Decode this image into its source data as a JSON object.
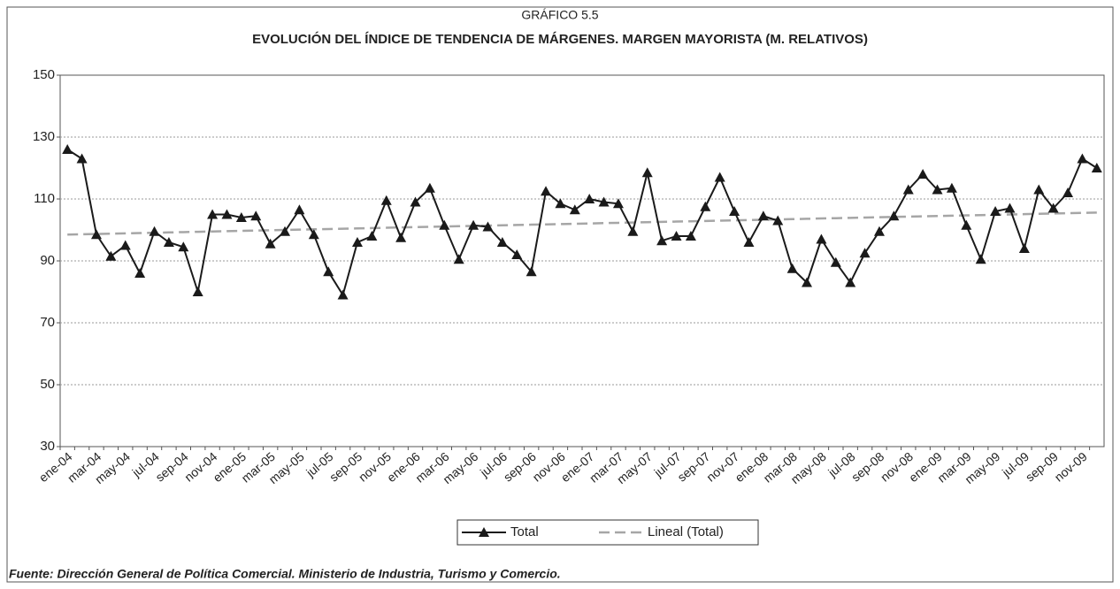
{
  "chart_data": {
    "type": "line",
    "supertitle": "GRÁFICO 5.5",
    "title": "EVOLUCIÓN DEL ÍNDICE DE TENDENCIA DE MÁRGENES. MARGEN MAYORISTA (M. RELATIVOS)",
    "source": "Fuente: Dirección General de Política Comercial. Ministerio de Industria, Turismo y Comercio.",
    "categories": [
      "ene-04",
      null,
      "mar-04",
      null,
      "may-04",
      null,
      "jul-04",
      null,
      "sep-04",
      null,
      "nov-04",
      null,
      "ene-05",
      null,
      "mar-05",
      null,
      "may-05",
      null,
      "jul-05",
      null,
      "sep-05",
      null,
      "nov-05",
      null,
      "ene-06",
      null,
      "mar-06",
      null,
      "may-06",
      null,
      "jul-06",
      null,
      "sep-06",
      null,
      "nov-06",
      null,
      "ene-07",
      null,
      "mar-07",
      null,
      "may-07",
      null,
      "jul-07",
      null,
      "sep-07",
      null,
      "nov-07",
      null,
      "ene-08",
      null,
      "mar-08",
      null,
      "may-08",
      null,
      "jul-08",
      null,
      "sep-08",
      null,
      "nov-08",
      null,
      "ene-09",
      null,
      "mar-09",
      null,
      "may-09",
      null,
      "jul-09",
      null,
      "sep-09",
      null,
      "nov-09",
      null
    ],
    "series": [
      {
        "name": "Total",
        "color": "#1a1a1a",
        "marker": "triangle",
        "values": [
          126,
          123,
          98.5,
          91.5,
          95,
          86,
          99.5,
          96,
          94.5,
          80,
          105,
          105,
          104,
          104.5,
          95.5,
          99.5,
          106.5,
          98.5,
          86.5,
          79,
          96,
          98,
          109.5,
          97.5,
          109,
          113.5,
          101.5,
          90.5,
          101.5,
          101,
          96,
          92,
          86.5,
          112.5,
          108.5,
          106.5,
          110,
          109,
          108.5,
          99.5,
          118.5,
          96.5,
          98,
          98,
          107.5,
          117,
          106,
          96,
          104.5,
          103,
          87.5,
          83,
          97,
          89.5,
          83,
          92.5,
          99.5,
          104.5,
          113,
          118,
          113,
          113.5,
          101.5,
          90.5,
          106,
          107,
          94,
          113,
          107,
          112,
          123,
          120
        ]
      },
      {
        "name": "Lineal (Total)",
        "color": "#a6a6a6",
        "dashed": true,
        "values": [
          98.5,
          98.6,
          98.7,
          98.8,
          98.9,
          99.0,
          99.1,
          99.2,
          99.3,
          99.4,
          99.5,
          99.6,
          99.7,
          99.8,
          99.9,
          100.0,
          100.1,
          100.2,
          100.3,
          100.4,
          100.5,
          100.6,
          100.7,
          100.8,
          100.9,
          101.0,
          101.1,
          101.2,
          101.3,
          101.4,
          101.5,
          101.6,
          101.7,
          101.8,
          101.9,
          102.0,
          102.1,
          102.2,
          102.3,
          102.4,
          102.5,
          102.6,
          102.7,
          102.8,
          102.9,
          103.0,
          103.1,
          103.2,
          103.3,
          103.4,
          103.5,
          103.6,
          103.7,
          103.8,
          103.9,
          104.0,
          104.1,
          104.2,
          104.3,
          104.4,
          104.5,
          104.6,
          104.7,
          104.8,
          104.9,
          105.0,
          105.1,
          105.2,
          105.3,
          105.4,
          105.5,
          105.6
        ]
      }
    ],
    "ylim": [
      30,
      150
    ],
    "yticks": [
      30,
      50,
      70,
      90,
      110,
      130,
      150
    ],
    "grid": true,
    "legend": "bottom"
  }
}
